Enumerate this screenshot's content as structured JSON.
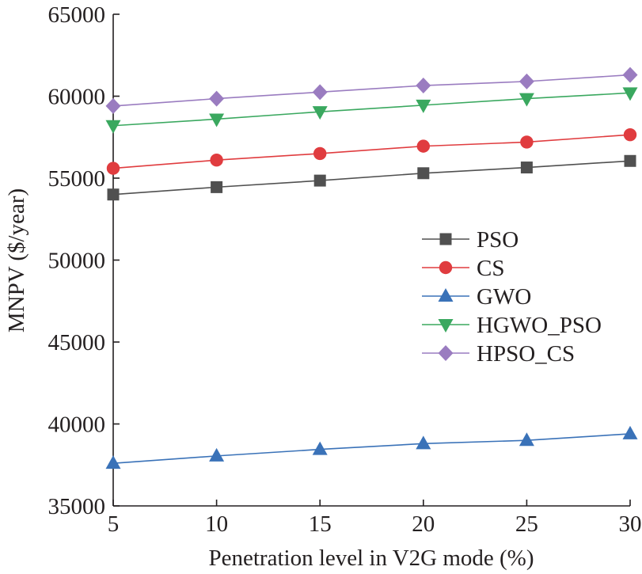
{
  "chart_data": {
    "type": "line",
    "title": "",
    "xlabel": "Penetration level in V2G mode (%)",
    "ylabel": "MNPV ($/year)",
    "x": [
      5,
      10,
      15,
      20,
      25,
      30
    ],
    "xlim": [
      5,
      30
    ],
    "ylim": [
      35000,
      65000
    ],
    "xticks": [
      "5",
      "10",
      "15",
      "20",
      "25",
      "30"
    ],
    "yticks": [
      "35000",
      "40000",
      "45000",
      "50000",
      "55000",
      "60000",
      "65000"
    ],
    "grid": false,
    "legend_position": "center-right",
    "series": [
      {
        "name": "PSO",
        "marker": "square",
        "color": "#505050",
        "values": [
          54000,
          54450,
          54850,
          55300,
          55650,
          56050
        ]
      },
      {
        "name": "CS",
        "marker": "circle",
        "color": "#e03c3f",
        "values": [
          55600,
          56100,
          56500,
          56950,
          57200,
          57650
        ]
      },
      {
        "name": "GWO",
        "marker": "triangle-up",
        "color": "#3a72b8",
        "values": [
          37600,
          38050,
          38450,
          38800,
          39000,
          39400
        ]
      },
      {
        "name": "HGWO_PSO",
        "marker": "triangle-down",
        "color": "#3aa85f",
        "values": [
          58200,
          58600,
          59050,
          59450,
          59850,
          60200
        ]
      },
      {
        "name": "HPSO_CS",
        "marker": "diamond",
        "color": "#9a7cc0",
        "values": [
          59400,
          59850,
          60250,
          60650,
          60900,
          61300
        ]
      }
    ]
  }
}
